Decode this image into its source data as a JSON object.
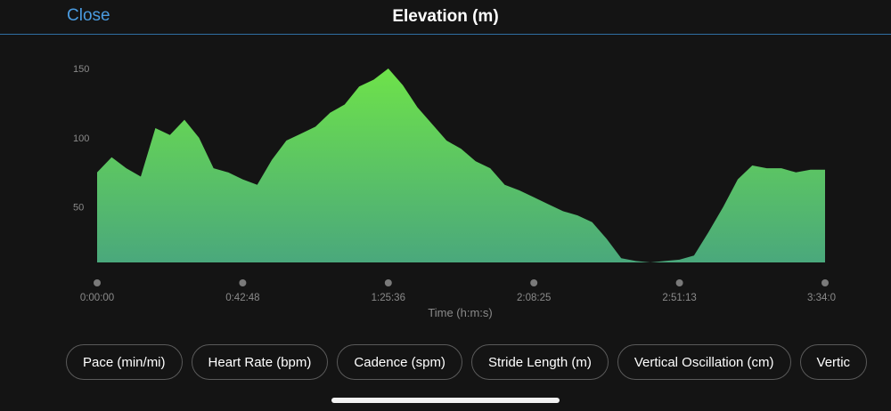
{
  "header": {
    "close_label": "Close",
    "title": "Elevation (m)"
  },
  "chart_data": {
    "type": "area",
    "title": "Elevation (m)",
    "xlabel": "Time (h:m:s)",
    "ylabel": "",
    "x_tick_labels": [
      "0:00:00",
      "0:42:48",
      "1:25:36",
      "2:08:25",
      "2:51:13",
      "3:34:0"
    ],
    "y_ticks": [
      50,
      100,
      150
    ],
    "ylim": [
      10,
      150
    ],
    "x": [
      "0:00:00",
      "0:04:17",
      "0:08:34",
      "0:12:51",
      "0:17:07",
      "0:21:24",
      "0:25:41",
      "0:29:58",
      "0:34:14",
      "0:38:31",
      "0:42:48",
      "0:47:05",
      "0:51:22",
      "0:55:38",
      "0:59:55",
      "1:04:12",
      "1:08:29",
      "1:12:46",
      "1:17:02",
      "1:21:19",
      "1:25:36",
      "1:29:53",
      "1:34:10",
      "1:38:26",
      "1:42:43",
      "1:47:00",
      "1:51:17",
      "1:55:34",
      "1:59:50",
      "2:04:07",
      "2:08:25",
      "2:12:42",
      "2:16:59",
      "2:21:16",
      "2:25:32",
      "2:29:49",
      "2:34:06",
      "2:38:23",
      "2:42:40",
      "2:46:56",
      "2:51:13",
      "2:55:30",
      "2:59:47",
      "3:04:04",
      "3:08:21",
      "3:12:37",
      "3:16:54",
      "3:21:11",
      "3:25:28",
      "3:29:45",
      "3:34:02"
    ],
    "values": [
      75,
      86,
      78,
      72,
      107,
      102,
      113,
      100,
      78,
      75,
      70,
      66,
      84,
      98,
      103,
      108,
      118,
      124,
      137,
      142,
      150,
      138,
      122,
      110,
      98,
      92,
      83,
      78,
      66,
      62,
      57,
      52,
      47,
      44,
      39,
      27,
      13,
      11,
      10,
      11,
      12,
      15,
      32,
      50,
      70,
      80,
      78,
      78,
      75,
      77,
      77
    ],
    "series": [
      {
        "name": "",
        "color": "#5fd44e"
      }
    ],
    "colors": {
      "fill_top": "#6ee24a",
      "fill_bottom": "#4aa87c",
      "axis_text": "#8a8a8a",
      "tick_dot": "#7a7a7a"
    },
    "grid": false,
    "legend": "none"
  },
  "metric_chips": [
    "Pace (min/mi)",
    "Heart Rate (bpm)",
    "Cadence (spm)",
    "Stride Length (m)",
    "Vertical Oscillation (cm)",
    "Vertic"
  ]
}
